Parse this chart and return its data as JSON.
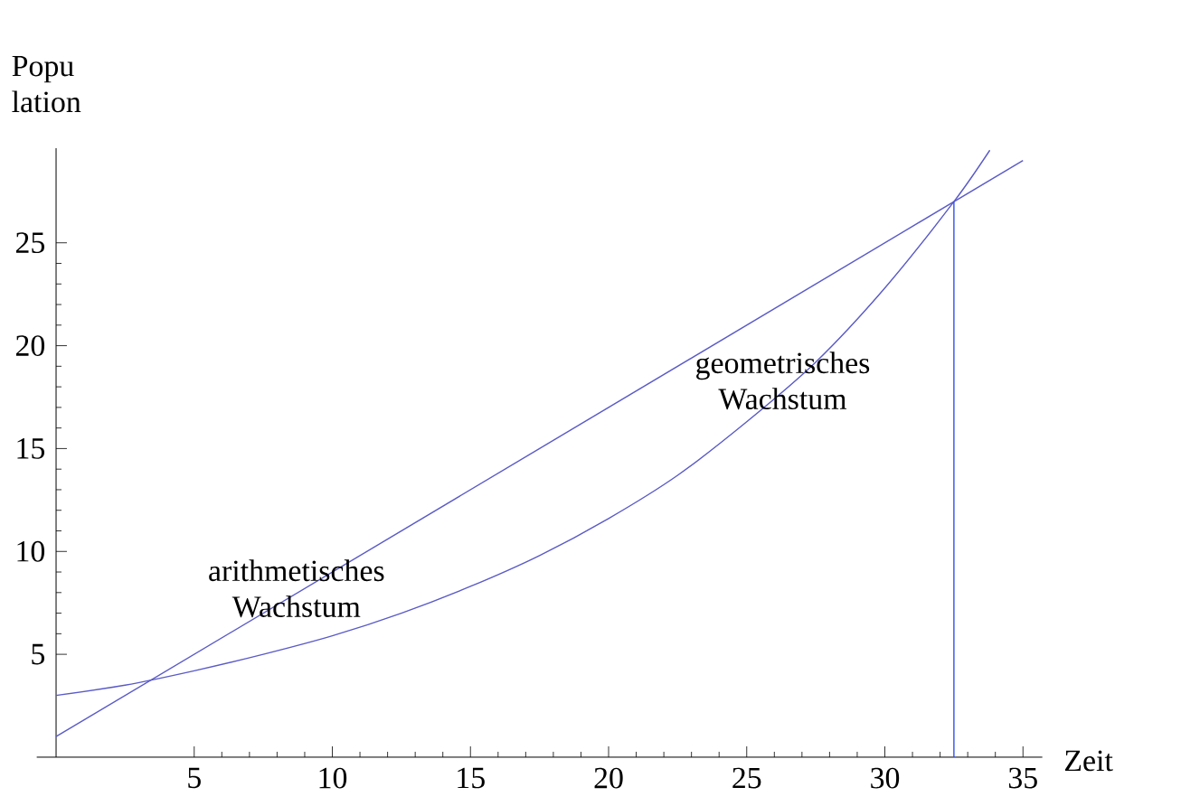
{
  "chart_data": {
    "type": "line",
    "xlabel": "Zeit",
    "ylabel": "Popu lation",
    "xlim": [
      -0.7,
      35.7
    ],
    "ylim": [
      0,
      29.6
    ],
    "xticks": [
      5,
      10,
      15,
      20,
      25,
      30,
      35
    ],
    "yticks": [
      5,
      10,
      15,
      20,
      25
    ],
    "grid": false,
    "marker": "none",
    "line_style": "solid",
    "series": [
      {
        "color": "#5a5ac8",
        "x": [
          0,
          35
        ],
        "values": [
          1,
          29
        ]
      },
      {
        "color": "#5a5ac8",
        "x": [
          0,
          2.5,
          5,
          7.5,
          10,
          12.5,
          15,
          17.5,
          20,
          22.5,
          25,
          27.5,
          30,
          32.5,
          33.8
        ],
        "values": [
          3,
          3.5,
          4.2,
          5,
          5.9,
          7,
          8.3,
          9.8,
          11.6,
          13.7,
          16.3,
          19.2,
          22.8,
          27,
          29.5
        ]
      },
      {
        "color": "#3050f0",
        "x": [
          32.5,
          32.5
        ],
        "values": [
          0,
          27
        ]
      }
    ],
    "annotations": [
      {
        "text": "arithmetisches Wachstum",
        "x": 8.7,
        "y": 8.2
      },
      {
        "text": "geometrisches Wachstum",
        "x": 26.3,
        "y": 18.3
      }
    ]
  }
}
